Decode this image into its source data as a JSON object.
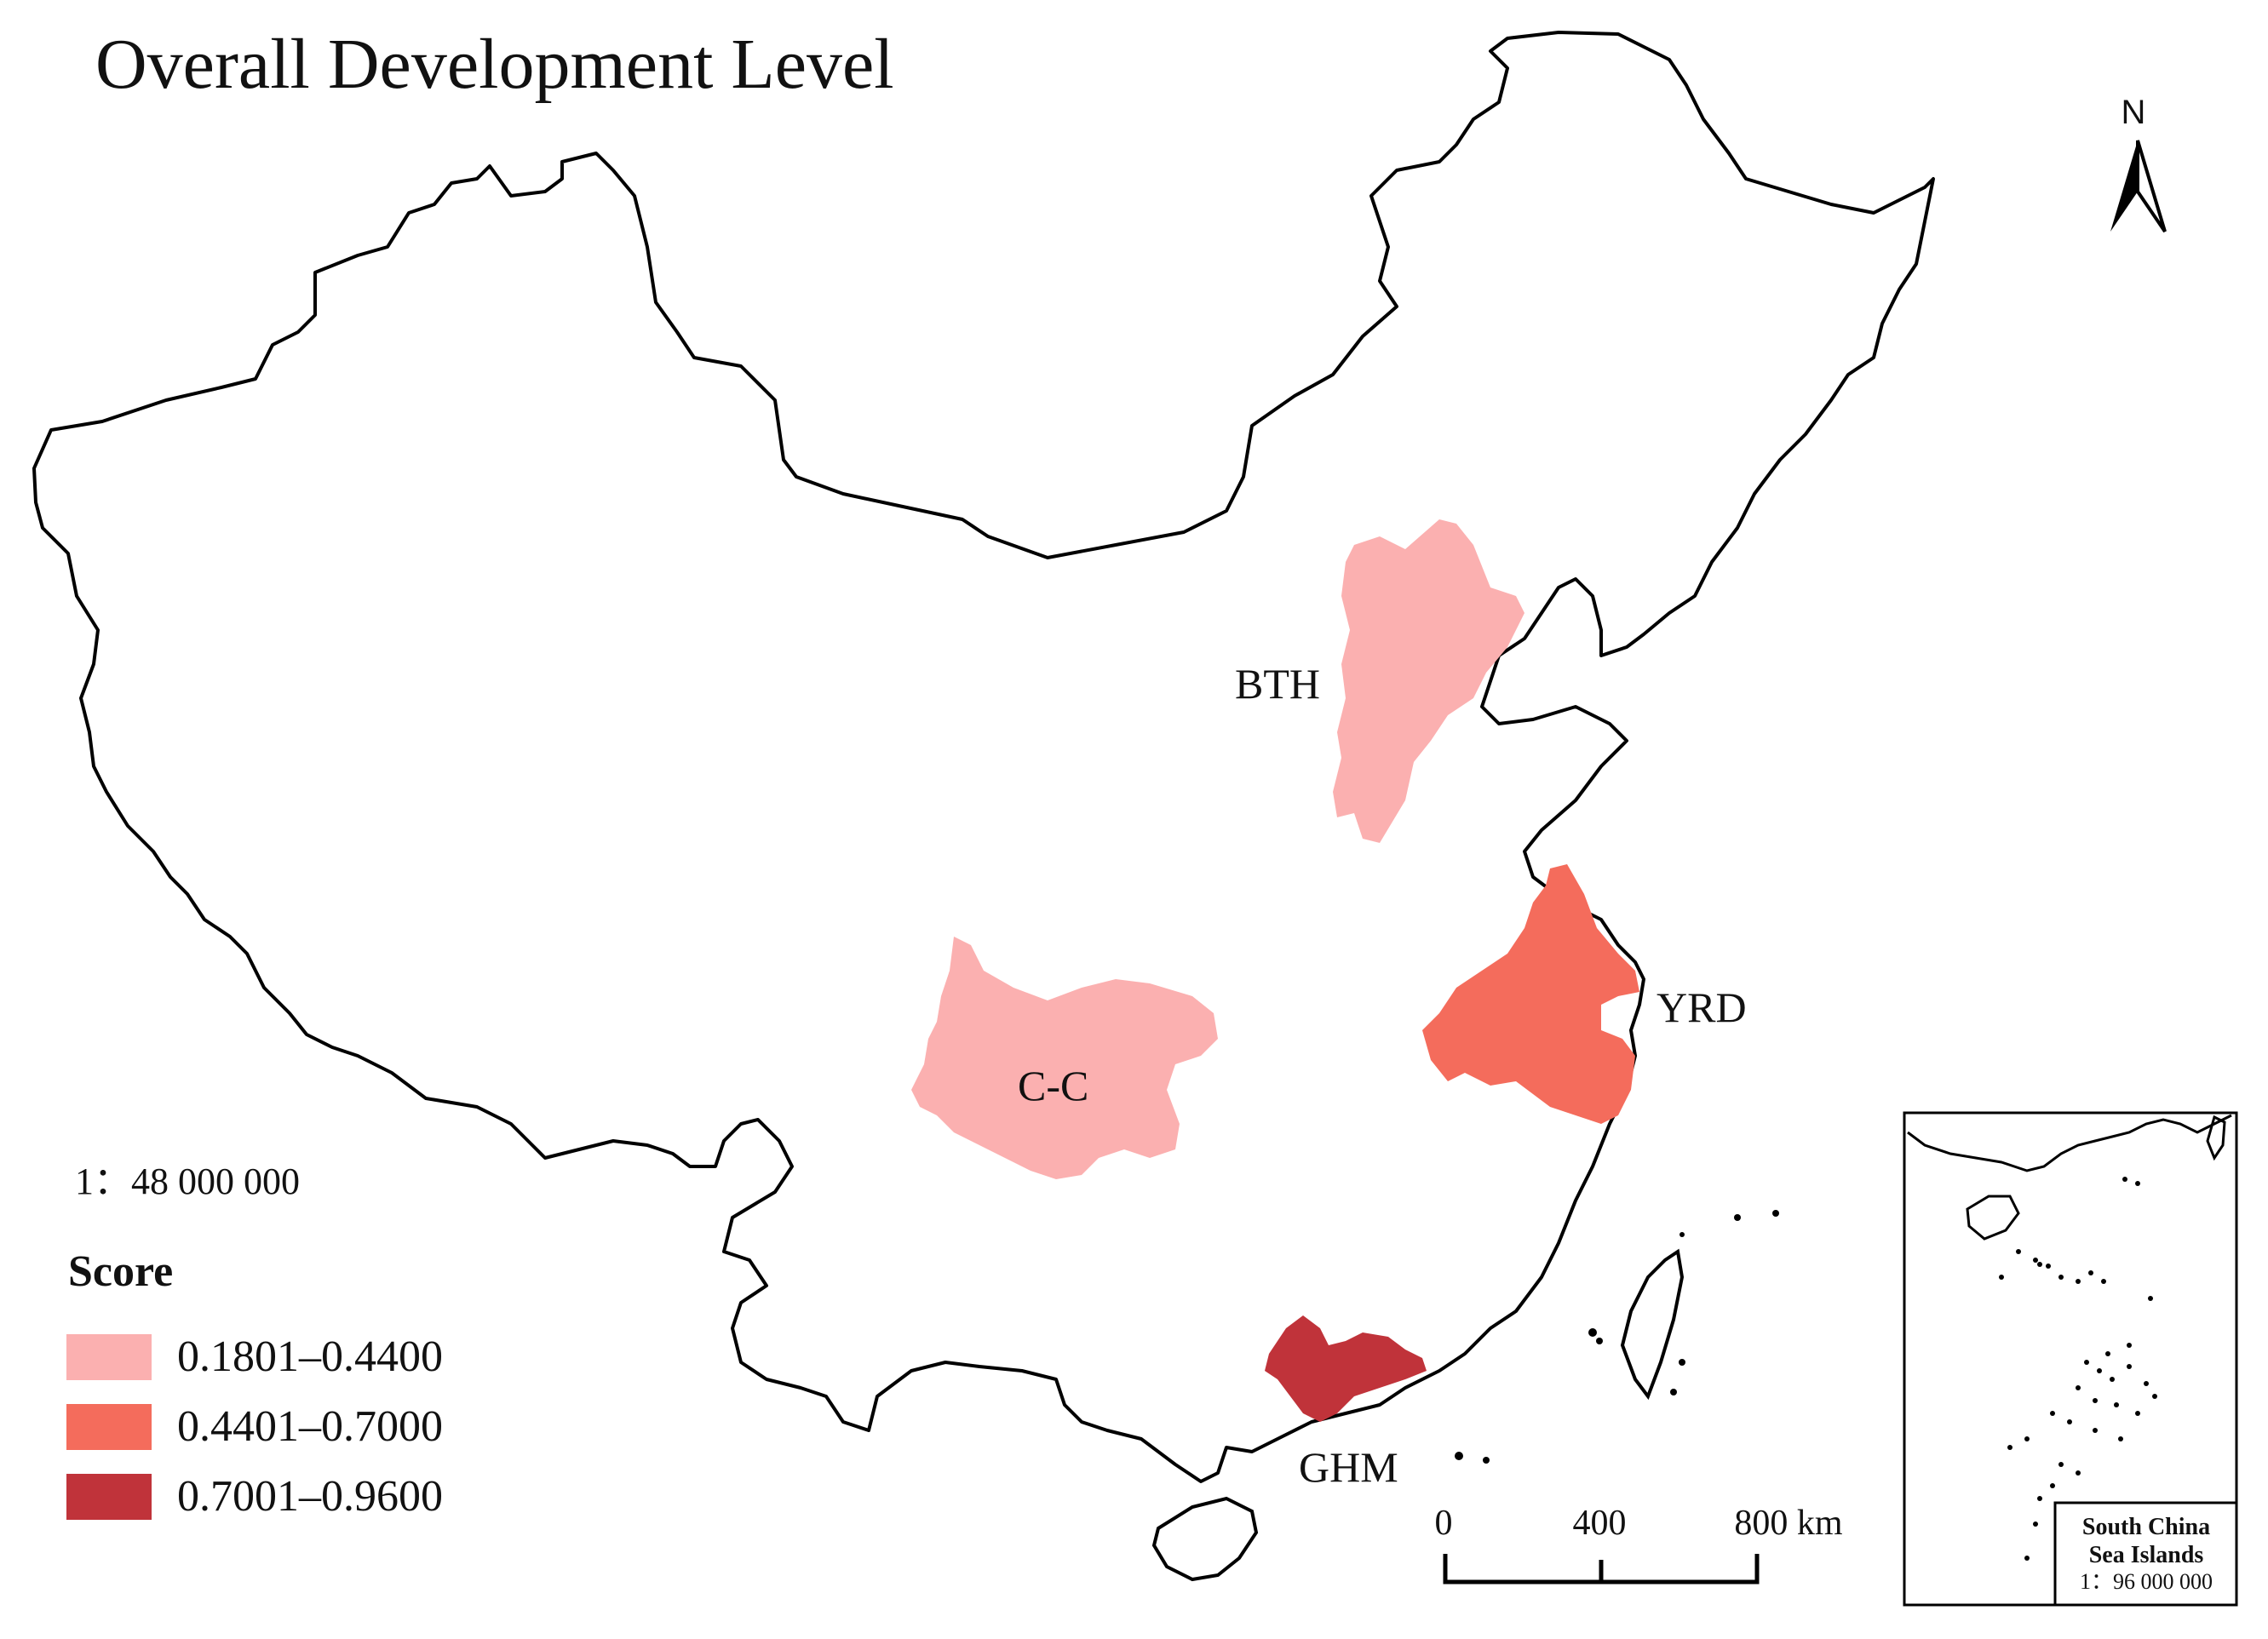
{
  "title": "Overall Development Level",
  "scale_ratio": "1：48 000 000",
  "legend": {
    "title": "Score",
    "items": [
      {
        "label": "0.1801–0.4400",
        "color": "#fbb0b0"
      },
      {
        "label": "0.4401–0.7000",
        "color": "#f46c5c"
      },
      {
        "label": "0.7001–0.9600",
        "color": "#c0333a"
      }
    ]
  },
  "regions": [
    {
      "id": "BTH",
      "label": "BTH",
      "class_index": 0
    },
    {
      "id": "C-C",
      "label": "C-C",
      "class_index": 0
    },
    {
      "id": "YRD",
      "label": "YRD",
      "class_index": 1
    },
    {
      "id": "GHM",
      "label": "GHM",
      "class_index": 2
    }
  ],
  "scale_bar": {
    "ticks": [
      "0",
      "400",
      "800 km"
    ]
  },
  "north_arrow": {
    "label": "N"
  },
  "inset": {
    "line1": "South China",
    "line2": "Sea Islands",
    "scale": "1：96 000 000"
  }
}
